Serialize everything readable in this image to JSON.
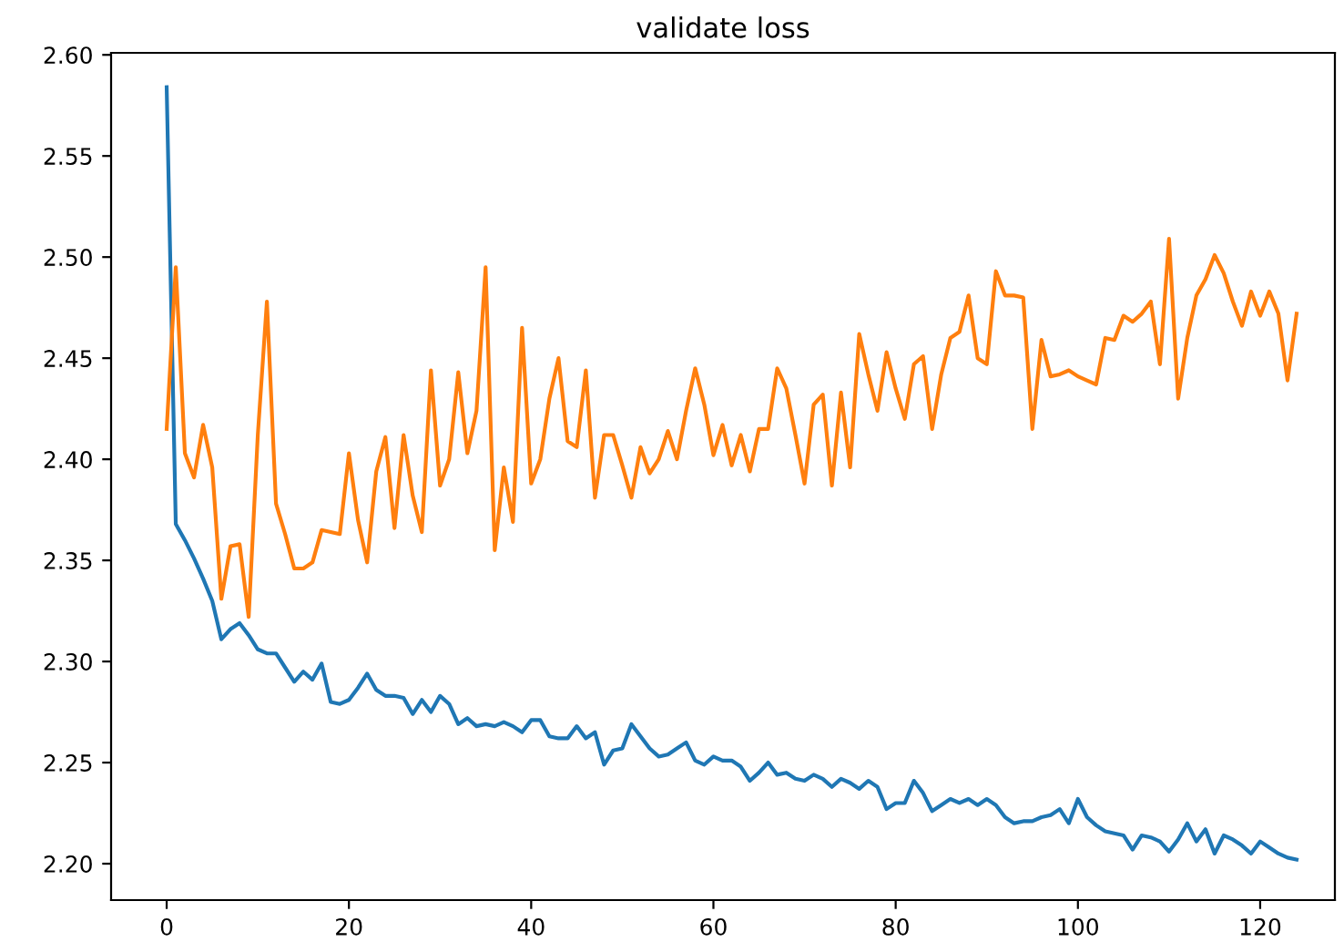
{
  "chart_data": {
    "type": "line",
    "title": "validate loss",
    "x": [
      0,
      1,
      2,
      3,
      4,
      5,
      6,
      7,
      8,
      9,
      10,
      11,
      12,
      13,
      14,
      15,
      16,
      17,
      18,
      19,
      20,
      21,
      22,
      23,
      24,
      25,
      26,
      27,
      28,
      29,
      30,
      31,
      32,
      33,
      34,
      35,
      36,
      37,
      38,
      39,
      40,
      41,
      42,
      43,
      44,
      45,
      46,
      47,
      48,
      49,
      50,
      51,
      52,
      53,
      54,
      55,
      56,
      57,
      58,
      59,
      60,
      61,
      62,
      63,
      64,
      65,
      66,
      67,
      68,
      69,
      70,
      71,
      72,
      73,
      74,
      75,
      76,
      77,
      78,
      79,
      80,
      81,
      82,
      83,
      84,
      85,
      86,
      87,
      88,
      89,
      90,
      91,
      92,
      93,
      94,
      95,
      96,
      97,
      98,
      99,
      100,
      101,
      102,
      103,
      104,
      105,
      106,
      107,
      108,
      109,
      110,
      111,
      112,
      113,
      114,
      115,
      116,
      117,
      118,
      119,
      120,
      121,
      122,
      123,
      124
    ],
    "series": [
      {
        "color": "#1f77b4",
        "values": [
          2.584,
          2.368,
          2.36,
          2.351,
          2.341,
          2.33,
          2.311,
          2.316,
          2.319,
          2.313,
          2.306,
          2.304,
          2.304,
          2.297,
          2.29,
          2.295,
          2.291,
          2.299,
          2.28,
          2.279,
          2.281,
          2.287,
          2.294,
          2.286,
          2.283,
          2.283,
          2.282,
          2.274,
          2.281,
          2.275,
          2.283,
          2.279,
          2.269,
          2.272,
          2.268,
          2.269,
          2.268,
          2.27,
          2.268,
          2.265,
          2.271,
          2.271,
          2.263,
          2.262,
          2.262,
          2.268,
          2.262,
          2.265,
          2.249,
          2.256,
          2.257,
          2.269,
          2.263,
          2.257,
          2.253,
          2.254,
          2.257,
          2.26,
          2.251,
          2.249,
          2.253,
          2.251,
          2.251,
          2.248,
          2.241,
          2.245,
          2.25,
          2.244,
          2.245,
          2.242,
          2.241,
          2.244,
          2.242,
          2.238,
          2.242,
          2.24,
          2.237,
          2.241,
          2.238,
          2.227,
          2.23,
          2.23,
          2.241,
          2.235,
          2.226,
          2.229,
          2.232,
          2.23,
          2.232,
          2.229,
          2.232,
          2.229,
          2.223,
          2.22,
          2.221,
          2.221,
          2.223,
          2.224,
          2.227,
          2.22,
          2.232,
          2.223,
          2.219,
          2.216,
          2.215,
          2.214,
          2.207,
          2.214,
          2.213,
          2.211,
          2.206,
          2.212,
          2.22,
          2.211,
          2.217,
          2.205,
          2.214,
          2.212,
          2.209,
          2.205,
          2.211,
          2.208,
          2.205,
          2.203,
          2.202
        ]
      },
      {
        "color": "#ff7f0e",
        "values": [
          2.415,
          2.495,
          2.403,
          2.391,
          2.417,
          2.396,
          2.331,
          2.357,
          2.358,
          2.322,
          2.412,
          2.478,
          2.378,
          2.363,
          2.346,
          2.346,
          2.349,
          2.365,
          2.364,
          2.363,
          2.403,
          2.37,
          2.349,
          2.394,
          2.411,
          2.366,
          2.412,
          2.382,
          2.364,
          2.444,
          2.387,
          2.4,
          2.443,
          2.403,
          2.424,
          2.495,
          2.355,
          2.396,
          2.369,
          2.465,
          2.388,
          2.4,
          2.43,
          2.45,
          2.409,
          2.406,
          2.444,
          2.381,
          2.412,
          2.412,
          2.397,
          2.381,
          2.406,
          2.393,
          2.4,
          2.414,
          2.4,
          2.424,
          2.445,
          2.427,
          2.402,
          2.417,
          2.397,
          2.412,
          2.394,
          2.415,
          2.415,
          2.445,
          2.435,
          2.412,
          2.388,
          2.427,
          2.432,
          2.387,
          2.433,
          2.396,
          2.462,
          2.442,
          2.424,
          2.453,
          2.435,
          2.42,
          2.447,
          2.451,
          2.415,
          2.442,
          2.46,
          2.463,
          2.481,
          2.45,
          2.447,
          2.493,
          2.481,
          2.481,
          2.48,
          2.415,
          2.459,
          2.441,
          2.442,
          2.444,
          2.441,
          2.439,
          2.437,
          2.46,
          2.459,
          2.471,
          2.468,
          2.472,
          2.478,
          2.447,
          2.509,
          2.43,
          2.46,
          2.481,
          2.489,
          2.501,
          2.492,
          2.478,
          2.466,
          2.483,
          2.471,
          2.483,
          2.472,
          2.439,
          2.472
        ]
      }
    ],
    "xlim": [
      -6.1,
      128.2
    ],
    "ylim": [
      2.182,
      2.601
    ],
    "xticks": [
      0,
      20,
      40,
      60,
      80,
      100,
      120
    ],
    "yticks": [
      {
        "value": 2.2,
        "label": "2.20"
      },
      2.25,
      {
        "value": 2.3,
        "label": "2.30"
      },
      2.35,
      {
        "value": 2.4,
        "label": "2.40"
      },
      2.45,
      {
        "value": 2.5,
        "label": "2.50"
      },
      2.55,
      {
        "value": 2.6,
        "label": "2.60"
      }
    ],
    "grid": false
  }
}
